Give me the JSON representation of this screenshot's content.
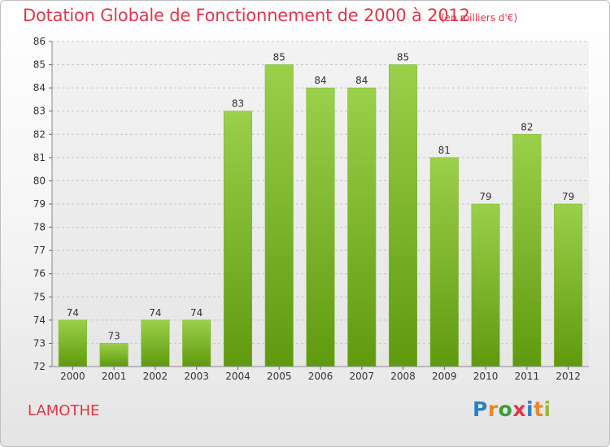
{
  "title": "Dotation Globale de Fonctionnement de 2000 à 2012",
  "unit_note": "(en milliers d'€)",
  "commune": "LAMOTHE",
  "logo": {
    "letters": [
      "P",
      "r",
      "o",
      "x",
      "i",
      "t",
      "i"
    ],
    "colors": [
      "#2f7fc3",
      "#e8892b",
      "#3a9d3a",
      "#e0374a",
      "#2f7fc3",
      "#e8892b",
      "#8fbf35"
    ]
  },
  "colors": {
    "title": "#e0374a",
    "bar_top": "#9bd04a",
    "bar_bottom": "#5f9a0e"
  },
  "chart_data": {
    "type": "bar",
    "title": "Dotation Globale de Fonctionnement de 2000 à 2012",
    "categories": [
      "2000",
      "2001",
      "2002",
      "2003",
      "2004",
      "2005",
      "2006",
      "2007",
      "2008",
      "2009",
      "2010",
      "2011",
      "2012"
    ],
    "values": [
      74,
      73,
      74,
      74,
      83,
      85,
      84,
      84,
      85,
      81,
      79,
      82,
      79
    ],
    "ylim": [
      72,
      86
    ],
    "yticks": [
      72,
      73,
      74,
      75,
      76,
      77,
      78,
      79,
      80,
      81,
      82,
      83,
      84,
      85,
      86
    ],
    "grid": true,
    "xlabel": "",
    "ylabel": ""
  }
}
